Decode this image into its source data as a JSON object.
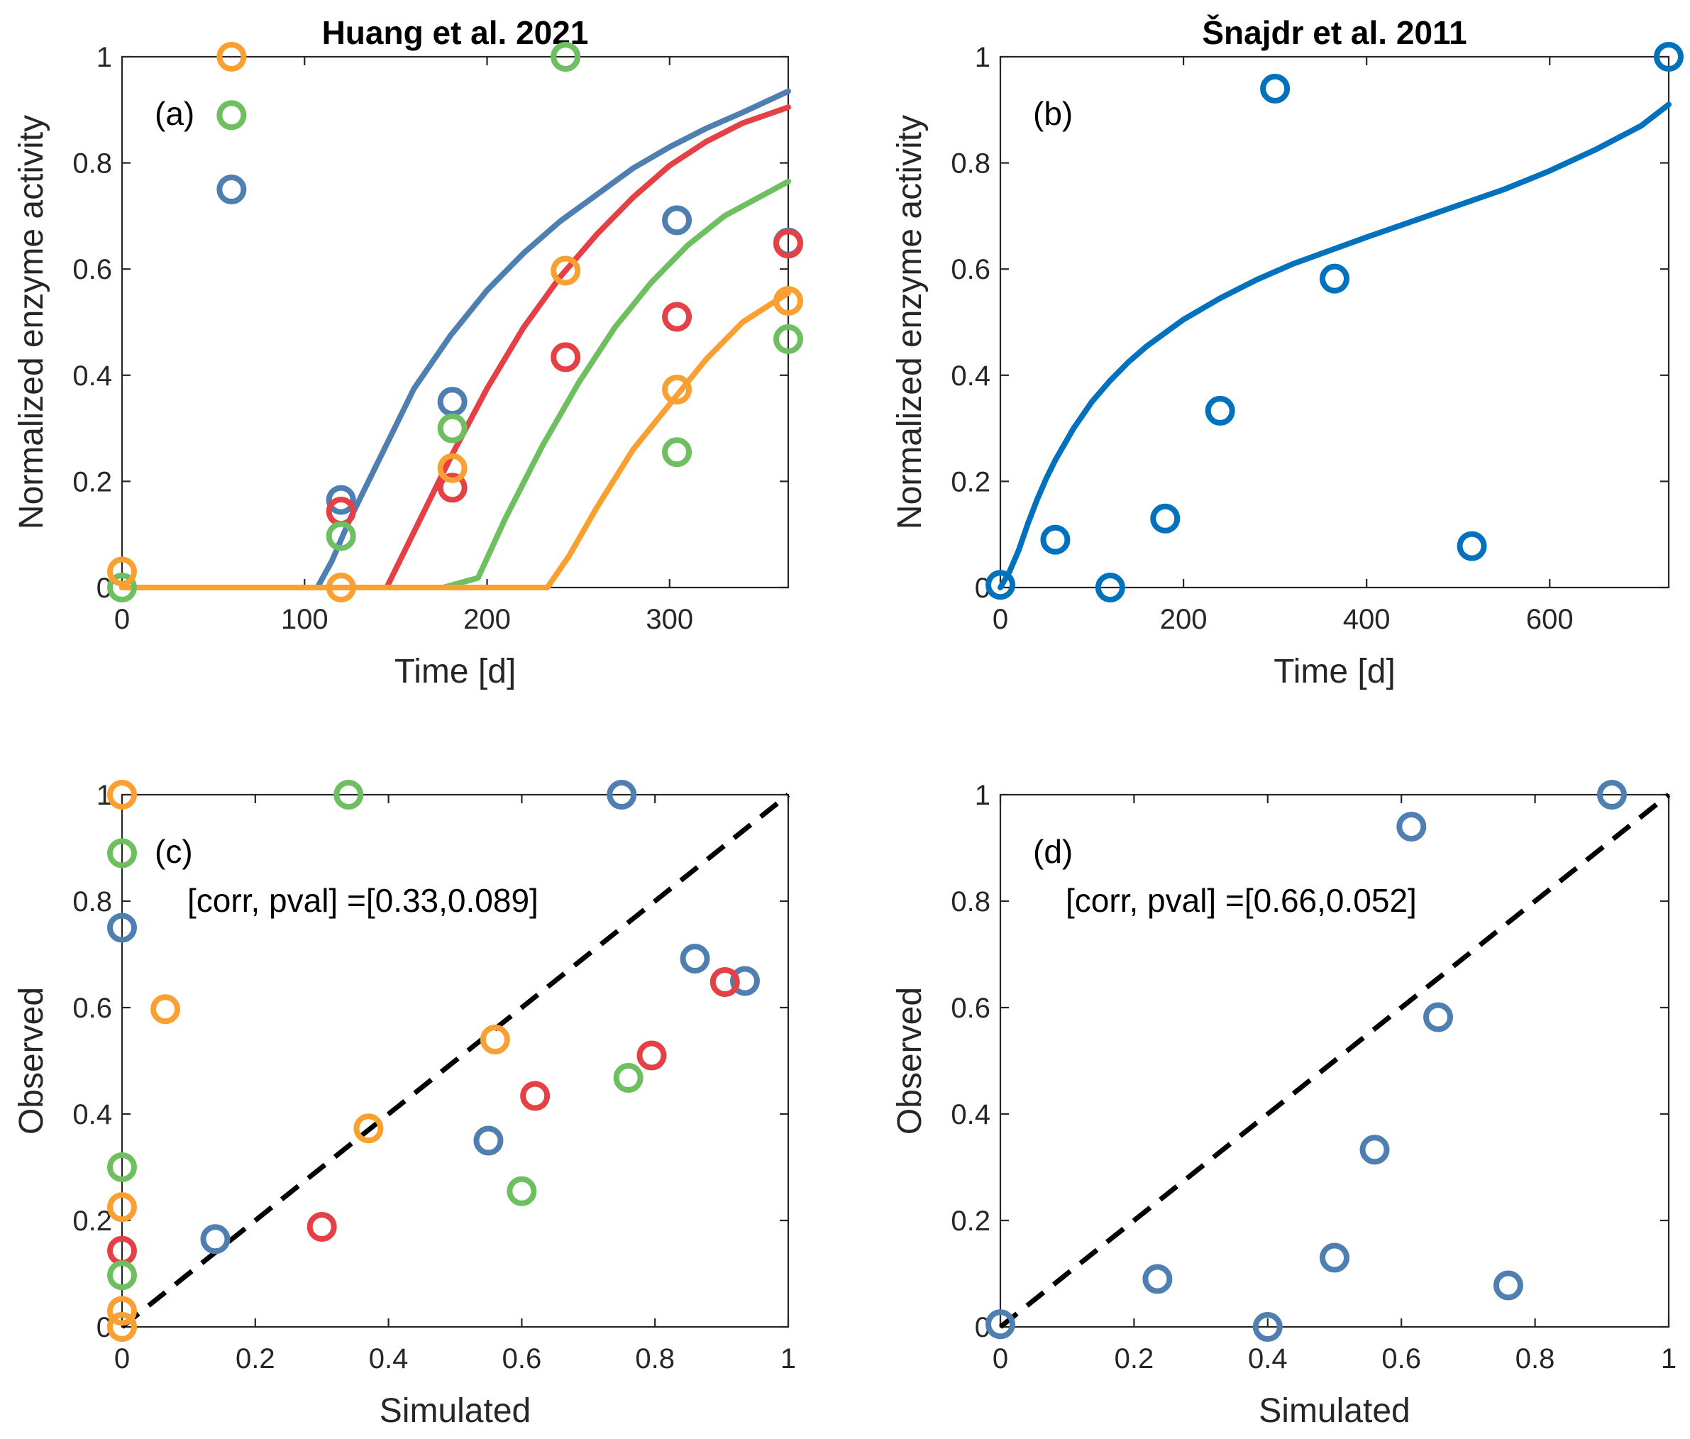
{
  "chart_data": [
    {
      "id": "a",
      "type": "scatter",
      "title": "Huang et al. 2021",
      "panel_label": "(a)",
      "xlabel": "Time [d]",
      "ylabel": "Normalized enzyme activity",
      "xlim": [
        0,
        365
      ],
      "ylim": [
        0,
        1
      ],
      "xticks": [
        0,
        100,
        200,
        300
      ],
      "yticks": [
        0,
        0.2,
        0.4,
        0.6,
        0.8,
        1
      ],
      "xtick_labels": [
        "0",
        "100",
        "200",
        "300"
      ],
      "ytick_labels": [
        "0",
        "0.2",
        "0.4",
        "0.6",
        "0.8",
        "1"
      ],
      "grid": false,
      "series": [
        {
          "color": "#4e7fb0",
          "points": [
            [
              60,
              0.75
            ],
            [
              120,
              0.165
            ],
            [
              181,
              0.35
            ],
            [
              243,
              1.0
            ],
            [
              304,
              0.692
            ],
            [
              365,
              0.65
            ]
          ],
          "line": [
            [
              107,
              0
            ],
            [
              115,
              0.05
            ],
            [
              125,
              0.13
            ],
            [
              140,
              0.235
            ],
            [
              160,
              0.375
            ],
            [
              180,
              0.475
            ],
            [
              200,
              0.56
            ],
            [
              220,
              0.63
            ],
            [
              240,
              0.69
            ],
            [
              260,
              0.74
            ],
            [
              280,
              0.79
            ],
            [
              300,
              0.83
            ],
            [
              320,
              0.865
            ],
            [
              340,
              0.895
            ],
            [
              365,
              0.935
            ]
          ]
        },
        {
          "color": "#e54045",
          "points": [
            [
              120,
              0.143
            ],
            [
              181,
              0.188
            ],
            [
              243,
              0.434
            ],
            [
              304,
              0.51
            ],
            [
              365,
              0.648
            ]
          ],
          "line": [
            [
              145,
              0
            ],
            [
              160,
              0.105
            ],
            [
              180,
              0.245
            ],
            [
              200,
              0.375
            ],
            [
              220,
              0.49
            ],
            [
              240,
              0.585
            ],
            [
              260,
              0.665
            ],
            [
              280,
              0.735
            ],
            [
              300,
              0.795
            ],
            [
              320,
              0.84
            ],
            [
              340,
              0.875
            ],
            [
              365,
              0.905
            ]
          ]
        },
        {
          "color": "#6dbf5f",
          "points": [
            [
              0,
              0.0
            ],
            [
              60,
              0.89
            ],
            [
              120,
              0.097
            ],
            [
              181,
              0.3
            ],
            [
              243,
              1.0
            ],
            [
              304,
              0.255
            ],
            [
              365,
              0.468
            ]
          ],
          "line": [
            [
              0,
              0
            ],
            [
              176,
              0
            ],
            [
              195,
              0.018
            ],
            [
              210,
              0.13
            ],
            [
              230,
              0.265
            ],
            [
              250,
              0.385
            ],
            [
              270,
              0.49
            ],
            [
              290,
              0.575
            ],
            [
              310,
              0.645
            ],
            [
              330,
              0.7
            ],
            [
              365,
              0.765
            ]
          ]
        },
        {
          "color": "#f9a030",
          "points": [
            [
              0,
              0.03
            ],
            [
              60,
              1.0
            ],
            [
              120,
              0.0
            ],
            [
              181,
              0.225
            ],
            [
              243,
              0.597
            ],
            [
              304,
              0.373
            ],
            [
              365,
              0.54
            ]
          ],
          "line": [
            [
              0,
              0
            ],
            [
              233,
              0
            ],
            [
              245,
              0.06
            ],
            [
              260,
              0.15
            ],
            [
              280,
              0.26
            ],
            [
              300,
              0.345
            ],
            [
              320,
              0.43
            ],
            [
              340,
              0.5
            ],
            [
              365,
              0.555
            ]
          ]
        }
      ]
    },
    {
      "id": "b",
      "type": "scatter",
      "title": "Šnajdr et al. 2011",
      "panel_label": "(b)",
      "xlabel": "Time [d]",
      "ylabel": "Normalized enzyme activity",
      "xlim": [
        0,
        730
      ],
      "ylim": [
        0,
        1
      ],
      "xticks": [
        0,
        200,
        400,
        600
      ],
      "yticks": [
        0,
        0.2,
        0.4,
        0.6,
        0.8,
        1
      ],
      "xtick_labels": [
        "0",
        "200",
        "400",
        "600"
      ],
      "ytick_labels": [
        "0",
        "0.2",
        "0.4",
        "0.6",
        "0.8",
        "1"
      ],
      "grid": false,
      "series": [
        {
          "color": "#0072bd",
          "points": [
            [
              0,
              0.005
            ],
            [
              60,
              0.09
            ],
            [
              120,
              0.0
            ],
            [
              180,
              0.13
            ],
            [
              240,
              0.333
            ],
            [
              300,
              0.94
            ],
            [
              365,
              0.582
            ],
            [
              515,
              0.078
            ],
            [
              730,
              1.0
            ]
          ],
          "line": [
            [
              0,
              0
            ],
            [
              10,
              0.03
            ],
            [
              20,
              0.07
            ],
            [
              30,
              0.12
            ],
            [
              40,
              0.165
            ],
            [
              50,
              0.205
            ],
            [
              60,
              0.24
            ],
            [
              80,
              0.3
            ],
            [
              100,
              0.35
            ],
            [
              120,
              0.39
            ],
            [
              140,
              0.425
            ],
            [
              160,
              0.455
            ],
            [
              180,
              0.48
            ],
            [
              200,
              0.505
            ],
            [
              240,
              0.545
            ],
            [
              280,
              0.58
            ],
            [
              320,
              0.61
            ],
            [
              360,
              0.635
            ],
            [
              400,
              0.66
            ],
            [
              450,
              0.69
            ],
            [
              500,
              0.72
            ],
            [
              550,
              0.75
            ],
            [
              600,
              0.785
            ],
            [
              650,
              0.825
            ],
            [
              700,
              0.87
            ],
            [
              730,
              0.91
            ]
          ]
        }
      ]
    },
    {
      "id": "c",
      "type": "scatter",
      "panel_label": "(c)",
      "xlabel": "Simulated",
      "ylabel": "Observed",
      "xlim": [
        0,
        1
      ],
      "ylim": [
        0,
        1
      ],
      "xticks": [
        0,
        0.2,
        0.4,
        0.6,
        0.8,
        1
      ],
      "yticks": [
        0,
        0.2,
        0.4,
        0.6,
        0.8,
        1
      ],
      "xtick_labels": [
        "0",
        "0.2",
        "0.4",
        "0.6",
        "0.8",
        "1"
      ],
      "ytick_labels": [
        "0",
        "0.2",
        "0.4",
        "0.6",
        "0.8",
        "1"
      ],
      "grid": false,
      "annotation": "[corr, pval] =[0.33,0.089]",
      "reference_line": [
        [
          0,
          0
        ],
        [
          1,
          1
        ]
      ],
      "series": [
        {
          "color": "#4e7fb0",
          "points": [
            [
              0,
              0.75
            ],
            [
              0.14,
              0.165
            ],
            [
              0.55,
              0.35
            ],
            [
              0.75,
              1.0
            ],
            [
              0.86,
              0.692
            ],
            [
              0.935,
              0.65
            ]
          ]
        },
        {
          "color": "#e54045",
          "points": [
            [
              0,
              0.143
            ],
            [
              0.3,
              0.188
            ],
            [
              0.62,
              0.434
            ],
            [
              0.795,
              0.51
            ],
            [
              0.905,
              0.648
            ]
          ]
        },
        {
          "color": "#6dbf5f",
          "points": [
            [
              0,
              0.0
            ],
            [
              0,
              0.89
            ],
            [
              0,
              0.097
            ],
            [
              0,
              0.3
            ],
            [
              0.34,
              1.0
            ],
            [
              0.6,
              0.255
            ],
            [
              0.76,
              0.468
            ]
          ]
        },
        {
          "color": "#f9a030",
          "points": [
            [
              0,
              0.03
            ],
            [
              0,
              1.0
            ],
            [
              0,
              0.0
            ],
            [
              0,
              0.225
            ],
            [
              0.065,
              0.597
            ],
            [
              0.37,
              0.373
            ],
            [
              0.56,
              0.54
            ]
          ]
        }
      ]
    },
    {
      "id": "d",
      "type": "scatter",
      "panel_label": "(d)",
      "xlabel": "Simulated",
      "ylabel": "Observed",
      "xlim": [
        0,
        1
      ],
      "ylim": [
        0,
        1
      ],
      "xticks": [
        0,
        0.2,
        0.4,
        0.6,
        0.8,
        1
      ],
      "yticks": [
        0,
        0.2,
        0.4,
        0.6,
        0.8,
        1
      ],
      "xtick_labels": [
        "0",
        "0.2",
        "0.4",
        "0.6",
        "0.8",
        "1"
      ],
      "ytick_labels": [
        "0",
        "0.2",
        "0.4",
        "0.6",
        "0.8",
        "1"
      ],
      "grid": false,
      "annotation": "[corr, pval] =[0.66,0.052]",
      "reference_line": [
        [
          0,
          0
        ],
        [
          1,
          1
        ]
      ],
      "series": [
        {
          "color": "#4e7fb0",
          "points": [
            [
              0,
              0.005
            ],
            [
              0.235,
              0.09
            ],
            [
              0.4,
              0.0
            ],
            [
              0.5,
              0.13
            ],
            [
              0.56,
              0.333
            ],
            [
              0.615,
              0.94
            ],
            [
              0.655,
              0.582
            ],
            [
              0.76,
              0.078
            ],
            [
              0.915,
              1.0
            ]
          ]
        }
      ]
    }
  ]
}
